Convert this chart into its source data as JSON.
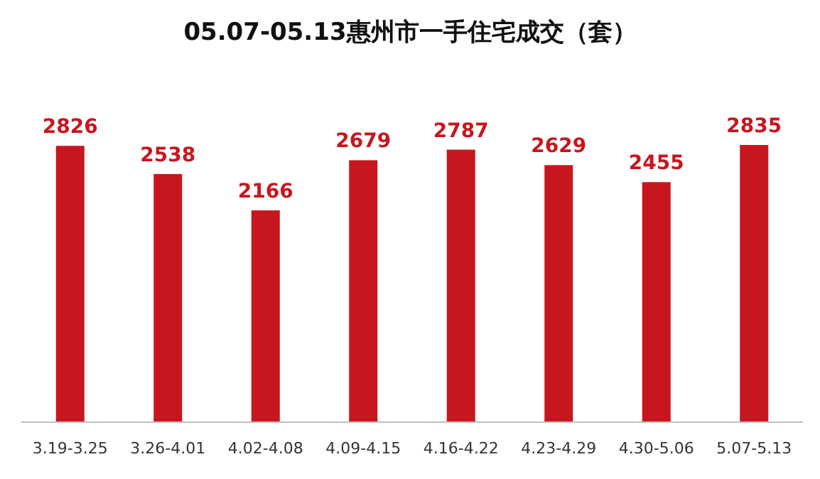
{
  "chart_data": {
    "type": "bar",
    "title": "05.07-05.13惠州市一手住宅成交（套）",
    "categories": [
      "3.19-3.25",
      "3.26-4.01",
      "4.02-4.08",
      "4.09-4.15",
      "4.16-4.22",
      "4.23-4.29",
      "4.30-5.06",
      "5.07-5.13"
    ],
    "values": [
      2826,
      2538,
      2166,
      2679,
      2787,
      2629,
      2455,
      2835
    ],
    "color": "#c8161e",
    "data_labels": true
  }
}
